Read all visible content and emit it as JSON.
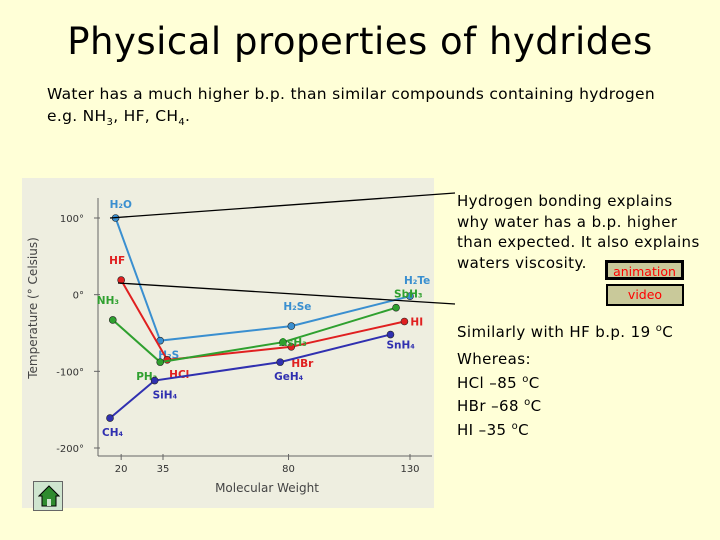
{
  "slide": {
    "title": "Physical properties of hydrides",
    "intro_line1": "Water has a much higher b.p. than similar compounds containing hydrogen",
    "intro_line2_prefix": "e.g. NH",
    "intro_line2_sub1": "3",
    "intro_line2_mid": ", HF, CH",
    "intro_line2_sub2": "4",
    "intro_line2_suffix": "."
  },
  "explanation": {
    "line1": "Hydrogen bonding explains",
    "line2": "why water has a b.p. higher",
    "line3": "than expected. It also explains",
    "line4": "waters viscosity.",
    "hf_prefix": "Similarly with HF b.p. 19 ",
    "hf_unit": "C",
    "whereas": "Whereas:",
    "hcl": "HCl –85 ",
    "hbr": "HBr –68 ",
    "hi": "HI –35 ",
    "unit_c": "C",
    "degree": "o"
  },
  "buttons": {
    "animation": "animation",
    "video": "video",
    "home_icon": "home-icon"
  },
  "chart_data": {
    "type": "line",
    "xlabel": "Molecular Weight",
    "ylabel": "Temperature (° Celsius)",
    "x_ticks": [
      "20",
      "35",
      "80",
      "130"
    ],
    "y_ticks": [
      "100°",
      "0°",
      "-100°",
      "-200°"
    ],
    "series": [
      {
        "color": "#3a8fd0",
        "labels": [
          "H₂O",
          "H₂S",
          "H₂Se",
          "H₂Te"
        ],
        "x": [
          18,
          34,
          81,
          130
        ],
        "y": [
          100,
          -60,
          -41,
          -2
        ]
      },
      {
        "color": "#e02020",
        "labels": [
          "HF",
          "HCl",
          "HBr",
          "HI"
        ],
        "x": [
          20,
          36.5,
          81,
          128
        ],
        "y": [
          19,
          -85,
          -68,
          -35
        ]
      },
      {
        "color": "#2fa02f",
        "labels": [
          "NH₃",
          "PH₃",
          "AsH₃",
          "SbH₃"
        ],
        "x": [
          17,
          34,
          78,
          125
        ],
        "y": [
          -33,
          -88,
          -62,
          -17
        ]
      },
      {
        "color": "#3030b0",
        "labels": [
          "CH₄",
          "SiH₄",
          "GeH₄",
          "SnH₄"
        ],
        "x": [
          16,
          32,
          77,
          123
        ],
        "y": [
          -161,
          -112,
          -88,
          -52
        ]
      }
    ]
  }
}
